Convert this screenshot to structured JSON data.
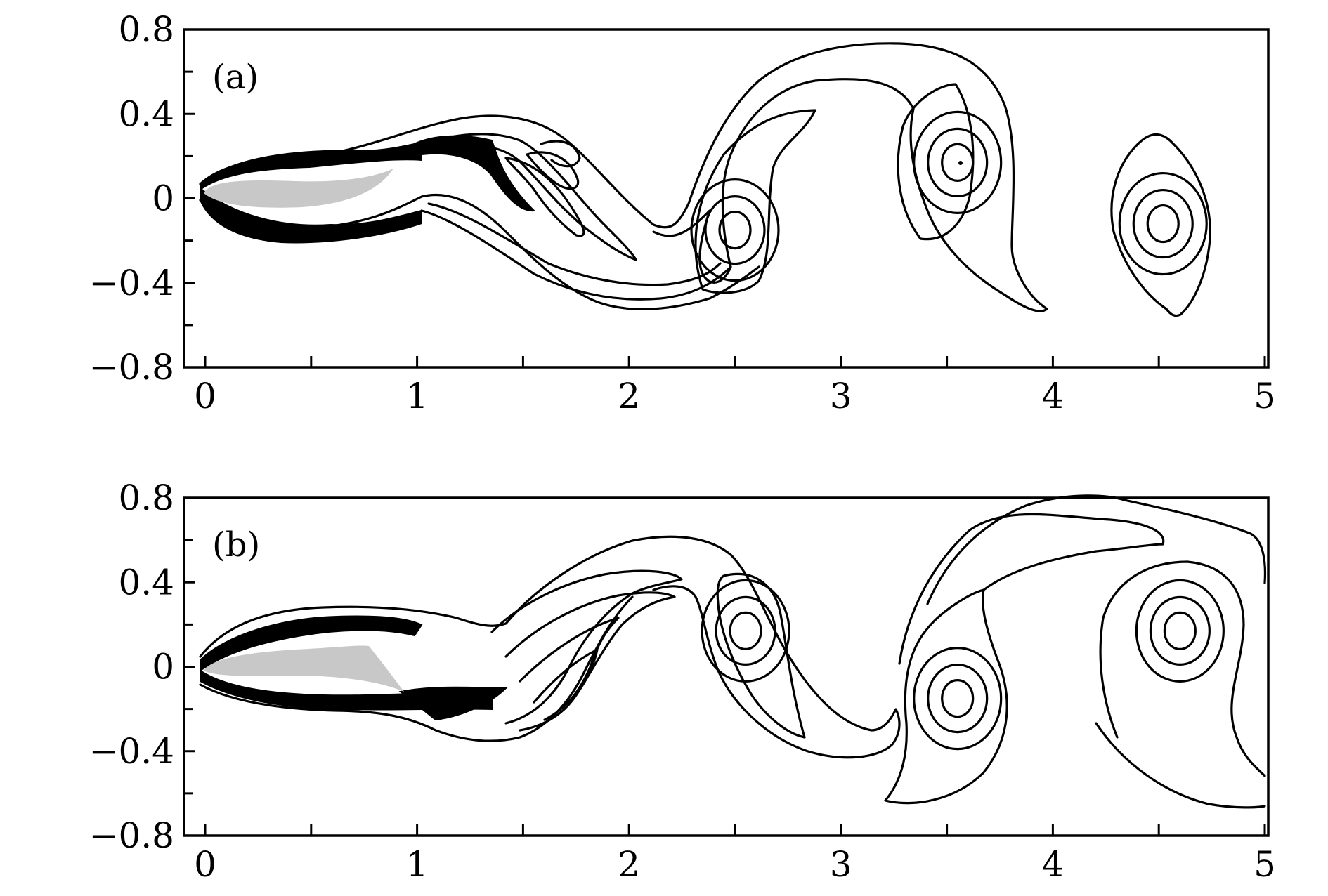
{
  "chart_data": [
    {
      "type": "contour",
      "panel_label": "(a)",
      "xlim": [
        0,
        5
      ],
      "ylim": [
        -0.8,
        0.8
      ],
      "x_ticks": [
        0,
        1,
        2,
        3,
        4,
        5
      ],
      "x_tick_labels": [
        "0",
        "1",
        "2",
        "3",
        "4",
        "5"
      ],
      "y_ticks": [
        0.8,
        0.4,
        0,
        -0.4,
        -0.8
      ],
      "y_tick_labels": [
        "0.8",
        "0.4",
        "0",
        "−0.4",
        "−0.8"
      ],
      "vortex_centers": [
        {
          "x": 2.5,
          "y": -0.15,
          "rings": 3
        },
        {
          "x": 3.55,
          "y": 0.17,
          "rings": 3
        },
        {
          "x": 4.52,
          "y": -0.12,
          "rings": 3
        }
      ]
    },
    {
      "type": "contour",
      "panel_label": "(b)",
      "xlim": [
        0,
        5
      ],
      "ylim": [
        -0.8,
        0.8
      ],
      "x_ticks": [
        0,
        1,
        2,
        3,
        4,
        5
      ],
      "x_tick_labels": [
        "0",
        "1",
        "2",
        "3",
        "4",
        "5"
      ],
      "y_ticks": [
        0.8,
        0.4,
        0,
        -0.4,
        -0.8
      ],
      "y_tick_labels": [
        "0.8",
        "0.4",
        "0",
        "−0.4",
        "−0.8"
      ],
      "vortex_centers": [
        {
          "x": 2.55,
          "y": 0.17,
          "rings": 3
        },
        {
          "x": 3.55,
          "y": -0.15,
          "rings": 3
        },
        {
          "x": 4.6,
          "y": 0.17,
          "rings": 3
        }
      ]
    }
  ],
  "colors": {
    "line": "#000000",
    "body_fill": "#c8c8c8",
    "background": "#ffffff"
  }
}
